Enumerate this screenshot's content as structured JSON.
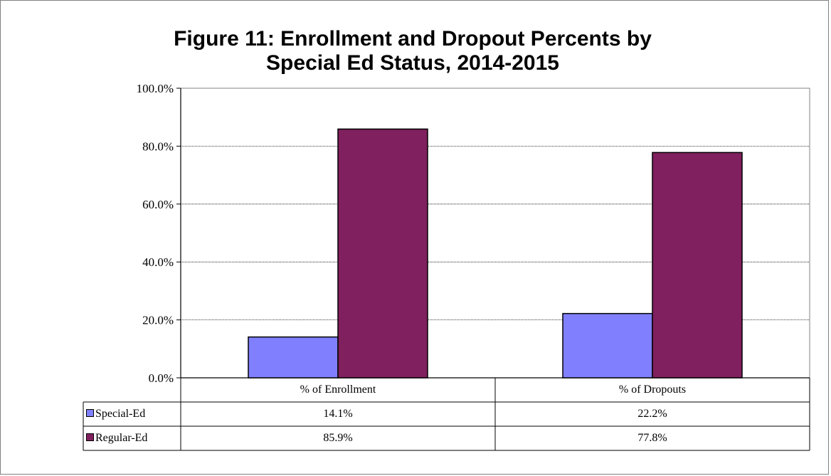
{
  "chart_data": {
    "type": "bar",
    "title_line1": "Figure 11:  Enrollment and Dropout Percents by",
    "title_line2": "Special Ed Status, 2014-2015",
    "categories": [
      "% of Enrollment",
      "% of Dropouts"
    ],
    "series": [
      {
        "name": "Special-Ed",
        "values": [
          14.1,
          22.2
        ],
        "labels": [
          "14.1%",
          "22.2%"
        ],
        "color": "#8080FF"
      },
      {
        "name": "Regular-Ed",
        "values": [
          85.9,
          77.8
        ],
        "labels": [
          "85.9%",
          "77.8%"
        ],
        "color": "#80205E"
      }
    ],
    "ylim": [
      0,
      100
    ],
    "yticks": [
      "0.0%",
      "20.0%",
      "40.0%",
      "60.0%",
      "80.0%",
      "100.0%"
    ],
    "grid": true,
    "legend": "data-table"
  }
}
